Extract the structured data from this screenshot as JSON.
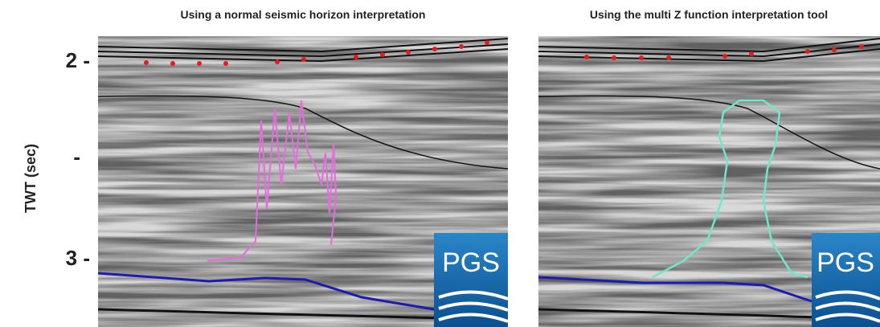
{
  "panels": [
    {
      "title": "Using a normal seismic horizon interpretation",
      "logo": "PGS"
    },
    {
      "title": "Using the multi Z function interpretation tool",
      "logo": "PGS"
    }
  ],
  "y_axis": {
    "label": "TWT (sec)",
    "ticks": [
      "2 -",
      "-",
      "3 -"
    ]
  }
}
